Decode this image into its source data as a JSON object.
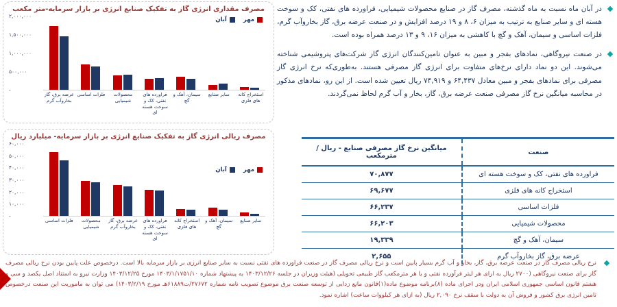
{
  "colors": {
    "bar_mehr_red": "#c00000",
    "bar_aban_navy": "#1f3864",
    "body_text_navy": "#1f3864",
    "title_dark_red": "#9b3a38",
    "table_line_blue": "#2e6da4",
    "bullet_teal": "#0ea5a0"
  },
  "paragraphs": [
    {
      "bullet": "diamond",
      "text": "در آبان ماه نسبت به ماه گذشته، مصرف گاز در صنایع محصولات شیمیایی، فراورده های نفتی، کک و سوخت هسته ای و سایر صنایع به ترتیب به میزان ۶، ۸ و ۱۹ درصد افزایش و در صنعت عرضه برق، گاز بخاروآب گرم، فلزات اساسی و سیمان، آهک و گچ با کاهشی به میزان ۱۶، ۹ و ۱۳ درصد همراه بوده است."
    },
    {
      "bullet": "diamond",
      "text": "در صنعت نیروگاهی، نمادهای بفجر و مبین به عنوان تامین‌کنندگان انرژی گاز شرکت‌های پتروشیمی شناخته می‌شوند. این دو نماد دارای نرخ‌های متفاوت برای انرژی گاز مصرفی هستند. به‌طوری‌که نرخ انرژی گاز مصرفی برای نمادهای بفجر و مبین معادل ۶۴,۴۳۷ و ۷۴,۹۱۹ ریال تعیین شده است. از این رو، نمادهای مذکور در محاسبه میانگین نرخ گاز مصرفی صنعت عرضه برق، گاز، بخار و آب گرم لحاظ نمی‌گردند."
    }
  ],
  "table": {
    "col_industry": "صنعت",
    "col_rate": "میانگین نرخ گاز مصرفی صنایع - ریال / مترمکعب",
    "rows": [
      {
        "industry": "فراورده های نفتی، کک و سوخت هسته ای",
        "rate": "۷۰,۸۷۷"
      },
      {
        "industry": "استخراج کانه های فلزی",
        "rate": "۶۹,۶۷۷"
      },
      {
        "industry": "فلزات اساسی",
        "rate": "۶۶,۲۳۷"
      },
      {
        "industry": "محصولات شیمیایی",
        "rate": "۶۶,۲۰۳"
      },
      {
        "industry": "سیمان، آهک و گچ",
        "rate": "۱۹,۳۳۹"
      },
      {
        "industry": "عرضه برق، گاز بخاروآب گرم",
        "rate": "۲,۶۵۵"
      }
    ]
  },
  "footnote": {
    "bullet": "diamond",
    "text": "نرخ ریالی مصرف گاز در صنعت عرضه برق، گاز، بخار و آب گرم بسیار پایین است و نرخ ریالی مصرف گاز در صنعت فراورده های نفتی نسبت به سایر صنایع انرژی بر بازار سرمایه بالا است. درخصوص علت پایین بودن نرخ ریالی مصرف گاز برای صنعت نیروگاهی (۲۷۰۰ ریال به ازای هر لیتر فرآورده نفتی و یا هر مترمکعب گاز طبیعی تحویلی (هیئت وزیران در جلسه ۱۴۰۳/۱۲/۲۶ به پیشنهاد شماره ۱۴۰۳/۱/۱۷۵۱/۱۰ مورخ ۱۴۰۳/۱۲/۲۵ وزارت نیرو به استناد اصل یکصد و سی و هشتم قانون اساسی جمهوری اسلامی ایران ودر اجرای ماده (۸)برنامه موضوع ماده(۱)قانون مانع زدایی از توسعه صنعت برق موضوع تصویب نامه شماره ۲۷۶۷۲/ت۶۱۸۸۹هـ مورخ ۱۴۰۳/۲/۱۹) می توان به ماموریت این صنعت درخصوص تامین انرژی برق کشور و فروش آن به دولت با سقف نرخ ۲,۰۹۰ ریال (به ازای هر کیلووات ساعت) اشاره نمود."
  },
  "chart_data": [
    {
      "type": "bar",
      "title": "مصرف مقداری انرژی گاز به تفکیک صنایع انرژی بر بازار سرمایه-متر مکعب",
      "xlabel": "",
      "ylabel": "",
      "ylim": [
        0,
        2000000
      ],
      "grid": false,
      "legend_position": "top-right",
      "categories": [
        "عرضه برق، گاز بخاروآب گرم",
        "فلزات اساسی",
        "محصولات شیمیایی",
        "فراورده های نفتی، کک و سوخت هسته ای",
        "سیمان، آهک و گچ",
        "سایر صنایع",
        "استخراج کانه های فلزی"
      ],
      "series": [
        {
          "name": "مهر",
          "color": "#c00000",
          "values": [
            1730000,
            700000,
            390000,
            300000,
            350000,
            135000,
            70000
          ]
        },
        {
          "name": "آبان",
          "color": "#1f3864",
          "values": [
            1450000,
            640000,
            415000,
            325000,
            305000,
            160000,
            65000
          ]
        }
      ],
      "yticks": [
        {
          "value": 2000000,
          "label": "۲,۰۰۰,۰۰۰"
        },
        {
          "value": 1500000,
          "label": "۱,۵۰۰,۰۰۰"
        },
        {
          "value": 1000000,
          "label": "۱,۰۰۰,۰۰۰"
        },
        {
          "value": 500000,
          "label": "۵۰۰,۰۰۰"
        },
        {
          "value": 0,
          "label": "-"
        }
      ]
    },
    {
      "type": "bar",
      "title": "مصرف ریالی انرژی گاز به تفکیک صنایع انرژی بر بازار سرمایه- میلیارد ریال",
      "xlabel": "",
      "ylabel": "",
      "ylim": [
        0,
        60000
      ],
      "grid": false,
      "legend_position": "right",
      "categories": [
        "فلزات اساسی",
        "محصولات شیمیایی",
        "عرضه برق، گاز بخاروآب گرم",
        "فراورده های نفتی، کک و سوخت هسته ای",
        "استخراج کانه های فلزی",
        "سیمان، آهک و گچ",
        "سایر صنایع"
      ],
      "series": [
        {
          "name": "مهر",
          "color": "#c00000",
          "values": [
            53000,
            29000,
            25500,
            21500,
            5500,
            7000,
            2600
          ]
        },
        {
          "name": "آبان",
          "color": "#1f3864",
          "values": [
            46000,
            28000,
            24500,
            21000,
            5400,
            5300,
            1900
          ]
        }
      ],
      "yticks": [
        {
          "value": 60000,
          "label": "۶۰,۰۰۰"
        },
        {
          "value": 50000,
          "label": "۵۰,۰۰۰"
        },
        {
          "value": 40000,
          "label": "۴۰,۰۰۰"
        },
        {
          "value": 30000,
          "label": "۳۰,۰۰۰"
        },
        {
          "value": 20000,
          "label": "۲۰,۰۰۰"
        },
        {
          "value": 10000,
          "label": "۱۰,۰۰۰"
        },
        {
          "value": 0,
          "label": "-"
        }
      ]
    }
  ]
}
